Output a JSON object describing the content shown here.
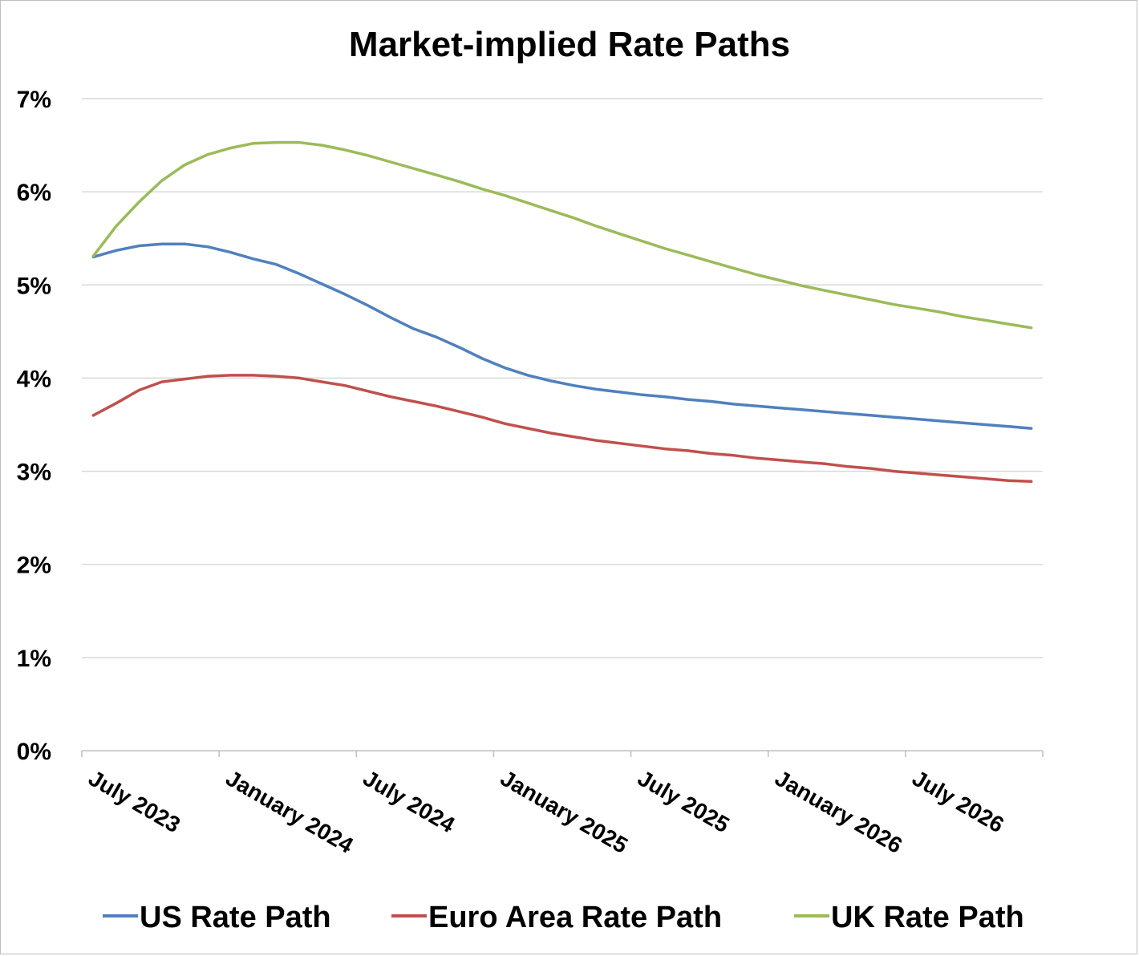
{
  "chart_data": {
    "type": "line",
    "title": "Market-implied Rate Paths",
    "xlabel": "",
    "ylabel": "",
    "ylim": [
      0,
      7
    ],
    "y_ticks": [
      "0%",
      "1%",
      "2%",
      "3%",
      "4%",
      "5%",
      "6%",
      "7%"
    ],
    "x_tick_labels": [
      "July 2023",
      "January 2024",
      "July 2024",
      "January 2025",
      "July 2025",
      "January 2026",
      "July 2026"
    ],
    "x_tick_month_index": [
      0,
      6,
      12,
      18,
      24,
      30,
      36
    ],
    "x_range_months": [
      -0.5,
      41.5
    ],
    "grid": true,
    "legend_position": "bottom",
    "x_months": [
      0,
      1,
      2,
      3,
      4,
      5,
      6,
      7,
      8,
      9,
      10,
      11,
      12,
      13,
      14,
      15,
      16,
      17,
      18,
      19,
      20,
      21,
      22,
      23,
      24,
      25,
      26,
      27,
      28,
      29,
      30,
      31,
      32,
      33,
      34,
      35,
      36,
      37,
      38,
      39,
      40,
      41
    ],
    "series": [
      {
        "name": "US Rate Path",
        "color": "#4f81bd",
        "values": [
          5.3,
          5.37,
          5.42,
          5.44,
          5.44,
          5.41,
          5.35,
          5.28,
          5.22,
          5.12,
          5.01,
          4.9,
          4.78,
          4.65,
          4.53,
          4.44,
          4.33,
          4.21,
          4.11,
          4.03,
          3.97,
          3.92,
          3.88,
          3.85,
          3.82,
          3.8,
          3.77,
          3.75,
          3.72,
          3.7,
          3.68,
          3.66,
          3.64,
          3.62,
          3.6,
          3.58,
          3.56,
          3.54,
          3.52,
          3.5,
          3.48,
          3.46
        ]
      },
      {
        "name": "Euro Area Rate Path",
        "color": "#c0504d",
        "values": [
          3.6,
          3.73,
          3.87,
          3.96,
          3.99,
          4.02,
          4.03,
          4.03,
          4.02,
          4.0,
          3.96,
          3.92,
          3.86,
          3.8,
          3.75,
          3.7,
          3.64,
          3.58,
          3.51,
          3.46,
          3.41,
          3.37,
          3.33,
          3.3,
          3.27,
          3.24,
          3.22,
          3.19,
          3.17,
          3.14,
          3.12,
          3.1,
          3.08,
          3.05,
          3.03,
          3.0,
          2.98,
          2.96,
          2.94,
          2.92,
          2.9,
          2.89
        ]
      },
      {
        "name": "UK Rate Path",
        "color": "#9bbb59",
        "values": [
          5.31,
          5.63,
          5.89,
          6.12,
          6.29,
          6.4,
          6.47,
          6.52,
          6.53,
          6.53,
          6.5,
          6.45,
          6.39,
          6.32,
          6.25,
          6.18,
          6.11,
          6.03,
          5.96,
          5.88,
          5.8,
          5.72,
          5.63,
          5.55,
          5.47,
          5.39,
          5.32,
          5.25,
          5.18,
          5.11,
          5.05,
          4.99,
          4.94,
          4.89,
          4.84,
          4.79,
          4.75,
          4.71,
          4.66,
          4.62,
          4.58,
          4.54
        ]
      }
    ]
  }
}
